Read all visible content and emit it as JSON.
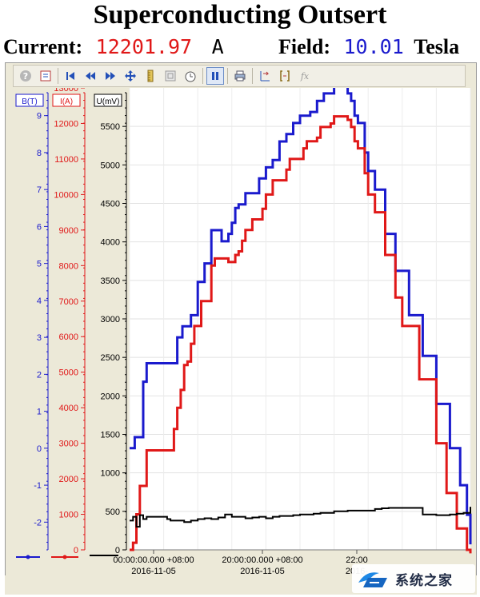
{
  "title": "Superconducting Outsert",
  "readout": {
    "current_label": "Current:",
    "current_value": "12201.97",
    "current_unit": "A",
    "field_label": "Field:",
    "field_value": "10.01",
    "field_unit": "Tesla",
    "current_color": "#e01818",
    "field_color": "#1a1acd"
  },
  "toolbar": {
    "buttons": [
      "help-icon",
      "export-icon",
      "first-icon",
      "rewind-icon",
      "fast-forward-icon",
      "pan-icon",
      "ruler-icon",
      "zoom-box-icon",
      "timer-icon",
      "pause-icon",
      "print-icon",
      "axis-scale-icon",
      "bracket-icon",
      "function-icon"
    ],
    "pressed": "pause-icon"
  },
  "chart_data": {
    "type": "line",
    "axes": [
      {
        "label": "B(T)",
        "color": "#1a1acd",
        "ylim": [
          -2.75,
          9.75
        ],
        "ticks": [
          9,
          8,
          7,
          6,
          5,
          4,
          3,
          2,
          1,
          0,
          -1,
          -2
        ]
      },
      {
        "label": "I(A)",
        "color": "#e01818",
        "ylim": [
          0,
          13000
        ],
        "ticks": [
          13000,
          12000,
          11000,
          10000,
          9000,
          8000,
          7000,
          6000,
          5000,
          4000,
          3000,
          2000,
          1000,
          0
        ]
      },
      {
        "label": "U(mV)",
        "color": "#000000",
        "ylim": [
          0,
          6000
        ],
        "ticks": [
          5500,
          5000,
          4500,
          4000,
          3500,
          3000,
          2500,
          2000,
          1500,
          1000,
          500,
          0
        ]
      }
    ],
    "x_tick_labels": [
      {
        "time": "00:00:00.000 +08:00",
        "date": "2016-11-05"
      },
      {
        "time": "20:00:00.000 +08:00",
        "date": "2016-11-05"
      },
      {
        "time": "22:00",
        "date": "2016-"
      }
    ],
    "x_range": [
      0,
      100
    ],
    "series": [
      {
        "axis": 0,
        "color": "#1a1acd",
        "x": [
          0,
          1.5,
          4,
          5,
          6,
          13,
          14,
          15.5,
          17,
          18,
          20,
          22,
          24,
          26,
          27,
          28,
          29,
          30,
          31,
          32,
          33,
          34,
          38,
          40,
          42,
          43,
          44,
          46,
          48,
          50,
          53,
          55,
          57,
          60,
          62,
          63,
          64,
          65,
          66,
          67,
          69,
          70,
          72,
          75,
          78,
          82,
          86,
          90,
          94,
          97,
          99,
          100
        ],
        "y": [
          0,
          0.3,
          1.8,
          2.3,
          2.3,
          2.3,
          3,
          3.3,
          3.3,
          3.6,
          4.5,
          5.0,
          5.9,
          5.9,
          5.6,
          5.6,
          5.8,
          6.1,
          6.5,
          6.6,
          6.6,
          6.9,
          7.3,
          7.6,
          7.8,
          7.8,
          8.3,
          8.5,
          8.8,
          9.0,
          9.1,
          9.4,
          9.6,
          9.8,
          9.8,
          9.8,
          9.6,
          9.4,
          9.0,
          8.8,
          8.0,
          7.5,
          7.0,
          5.8,
          4.8,
          3.6,
          2.5,
          1.2,
          0.0,
          -1.0,
          -1.8,
          -2.6
        ]
      },
      {
        "axis": 1,
        "color": "#e01818",
        "x": [
          0,
          1,
          2,
          3,
          5,
          12,
          13,
          14,
          15,
          16,
          17,
          18,
          19,
          21,
          24,
          25,
          28,
          29,
          30,
          31,
          32,
          33,
          34,
          36,
          39,
          40,
          42,
          43,
          46,
          47,
          51,
          52,
          55,
          56,
          59,
          60,
          62,
          63,
          64,
          65,
          66,
          67,
          69,
          70,
          72,
          75,
          78,
          80,
          85,
          90,
          93,
          96,
          99,
          100
        ],
        "y": [
          0,
          200,
          1000,
          1800,
          2800,
          2800,
          3400,
          4000,
          4500,
          5200,
          5300,
          5800,
          6300,
          7000,
          8000,
          8200,
          8200,
          8100,
          8100,
          8300,
          8400,
          8700,
          9000,
          9300,
          9600,
          10000,
          10400,
          10400,
          10700,
          11000,
          11300,
          11500,
          11600,
          11900,
          12000,
          12200,
          12200,
          12200,
          12100,
          11900,
          11500,
          11300,
          10600,
          10000,
          9500,
          8300,
          7100,
          6300,
          4800,
          3000,
          1600,
          600,
          0,
          -100
        ]
      },
      {
        "axis": 2,
        "color": "#000000",
        "x": [
          0,
          1,
          2,
          3,
          4,
          5,
          10,
          11,
          12,
          14,
          16,
          18,
          20,
          22,
          24,
          26,
          28,
          30,
          32,
          34,
          36,
          38,
          40,
          42,
          44,
          46,
          48,
          50,
          52,
          54,
          56,
          58,
          60,
          62,
          64,
          66,
          68,
          70,
          72,
          74,
          76,
          78,
          80,
          82,
          84,
          86,
          88,
          90,
          92,
          94,
          96,
          98,
          100
        ],
        "y": [
          380,
          430,
          300,
          450,
          400,
          430,
          430,
          400,
          380,
          380,
          360,
          380,
          400,
          410,
          400,
          420,
          460,
          430,
          430,
          410,
          420,
          430,
          410,
          430,
          440,
          440,
          450,
          460,
          460,
          470,
          480,
          480,
          500,
          500,
          510,
          510,
          510,
          510,
          530,
          540,
          545,
          545,
          545,
          545,
          545,
          460,
          460,
          450,
          450,
          460,
          470,
          480,
          560
        ]
      }
    ]
  },
  "watermark": {
    "text": "系统之家"
  }
}
